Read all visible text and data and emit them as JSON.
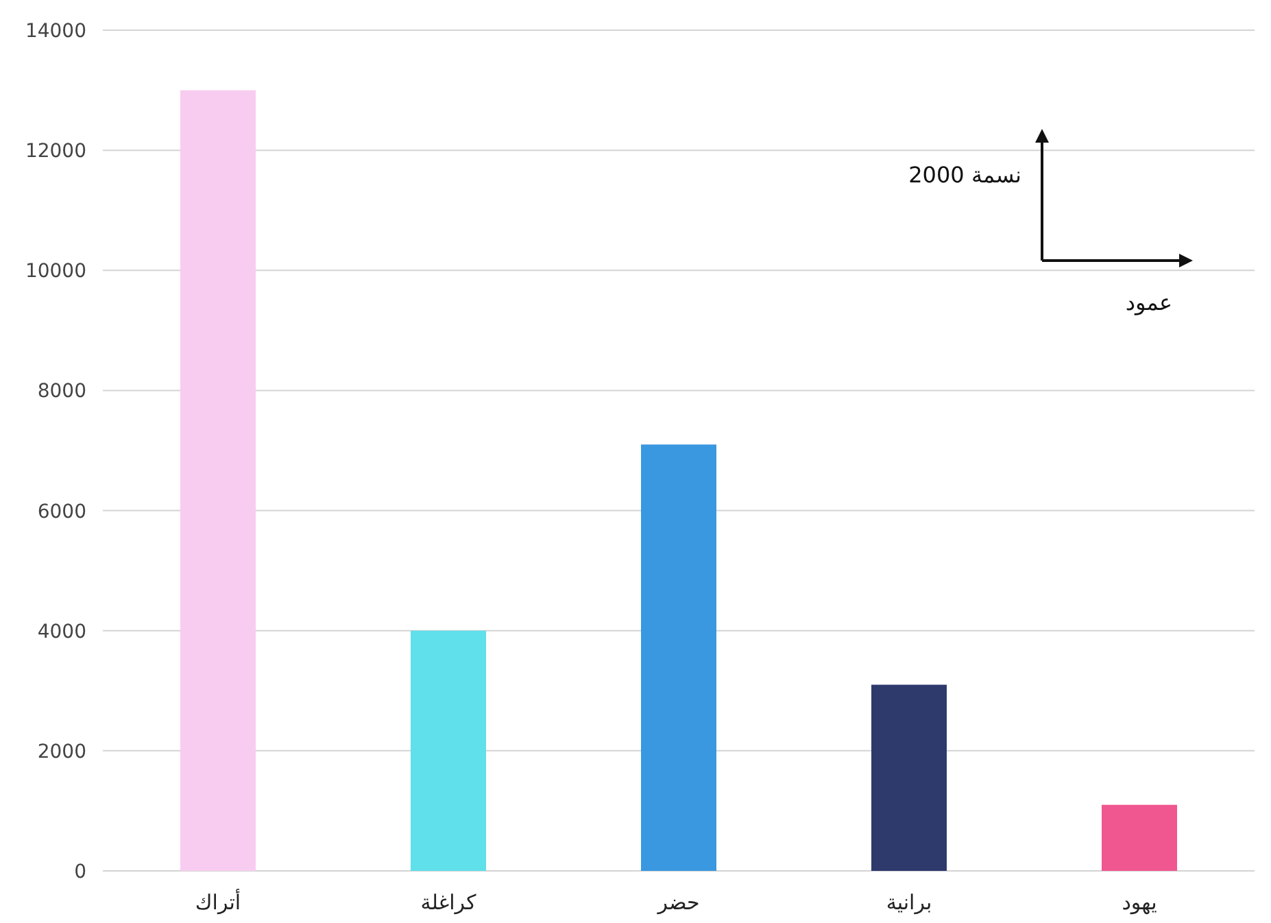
{
  "chart_data": {
    "type": "bar",
    "categories": [
      "أتراك",
      "كراغلة",
      "حضر",
      "برانية",
      "يهود"
    ],
    "values": [
      13000,
      4000,
      7100,
      3100,
      1100
    ],
    "colors": [
      "#f8ccf0",
      "#5fe0ea",
      "#3a98e0",
      "#2e3a6c",
      "#f0568f"
    ],
    "ylim": [
      0,
      14000
    ],
    "yticks": [
      0,
      2000,
      4000,
      6000,
      8000,
      10000,
      12000,
      14000
    ],
    "grid": "y",
    "annotations": [
      "2000 نسمة",
      "عمود"
    ]
  }
}
